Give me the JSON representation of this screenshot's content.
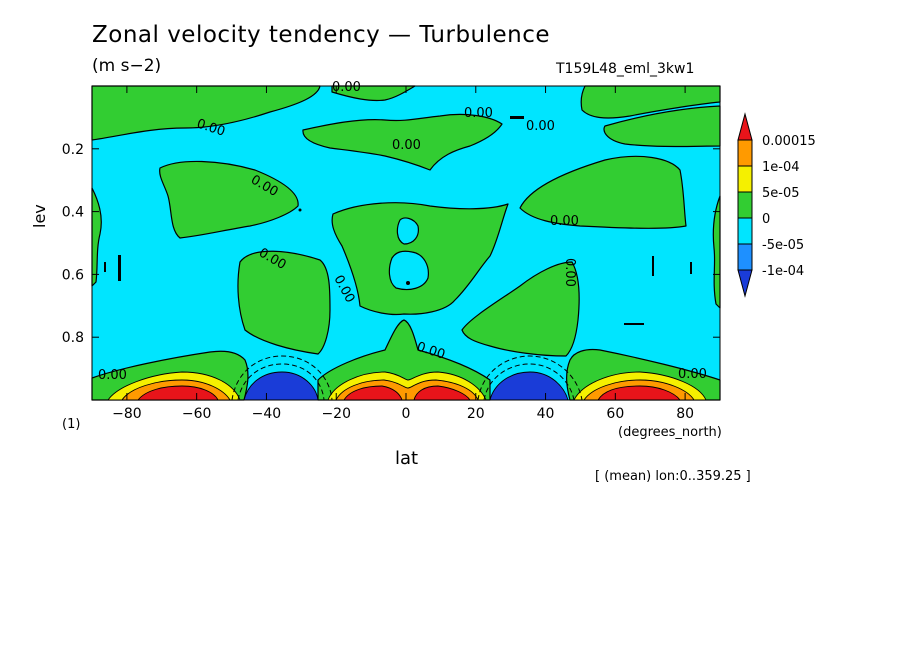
{
  "chart_data": {
    "type": "heatmap",
    "title": "Zonal velocity tendency — Turbulence",
    "units_label": "(m s−2)",
    "run_label": "T159L48_eml_3kw1",
    "xlabel": "lat",
    "x_units": "(degrees_north)",
    "ylabel": "lev",
    "panel_label": "(1)",
    "note": "[ (mean) lon:0..359.25 ]",
    "xlim": [
      -90,
      90
    ],
    "ylim": [
      1.0,
      0.0
    ],
    "x_ticks": [
      -80,
      -60,
      -40,
      -20,
      0,
      20,
      40,
      60,
      80
    ],
    "x_tick_labels": [
      "−80",
      "−60",
      "−40",
      "−20",
      "0",
      "20",
      "40",
      "60",
      "80"
    ],
    "y_ticks": [
      0.2,
      0.4,
      0.6,
      0.8
    ],
    "y_tick_labels": [
      "0.2",
      "0.4",
      "0.6",
      "0.8"
    ],
    "contour_labels": [
      "0.00",
      "0.00",
      "0.00",
      "0.00",
      "0.00",
      "0.00",
      "0.00",
      "0.00",
      "0.00",
      "0.00",
      "0.00",
      "0.00",
      "0.00"
    ],
    "colorbar": {
      "levels": [
        "0.00015",
        "1e-04",
        "5e-05",
        "0",
        "-5e-05",
        "-1e-04"
      ],
      "colors": [
        "#e8141a",
        "#ff9a00",
        "#f5f000",
        "#32cd32",
        "#00e5ff",
        "#1e90ff",
        "#1a3cd8"
      ]
    },
    "features": [
      {
        "name": "surface maximum",
        "lat": -63,
        "lev": 0.97,
        "value": "> 0.00015"
      },
      {
        "name": "surface minimum",
        "lat": -37,
        "lev": 0.97,
        "value": "< -1e-04"
      },
      {
        "name": "surface maximum",
        "lat": -12,
        "lev": 0.97,
        "value": "> 0.00015"
      },
      {
        "name": "surface maximum",
        "lat": 12,
        "lev": 0.97,
        "value": "> 0.00015"
      },
      {
        "name": "surface minimum",
        "lat": 37,
        "lev": 0.97,
        "value": "< -1e-04"
      },
      {
        "name": "surface maximum",
        "lat": 63,
        "lev": 0.97,
        "value": "> 0.00015"
      }
    ]
  }
}
